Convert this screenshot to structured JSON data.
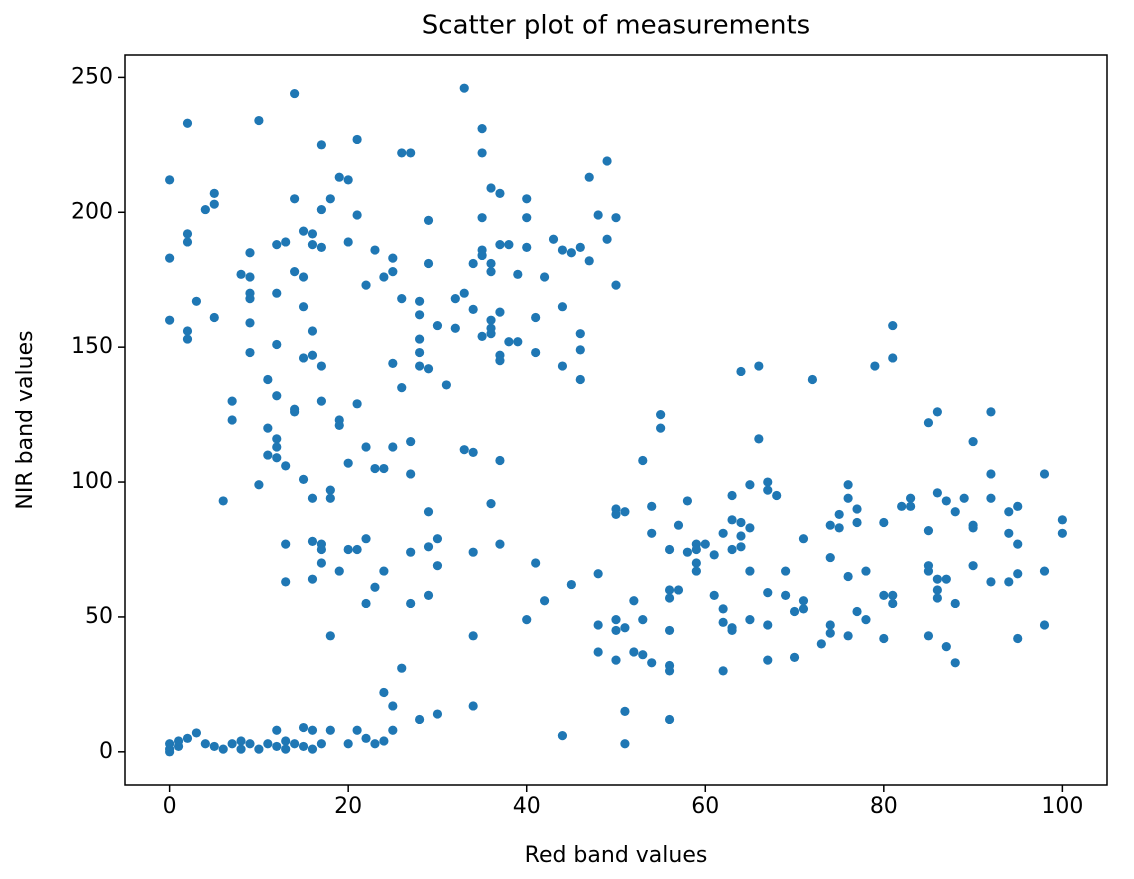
{
  "chart_data": {
    "type": "scatter",
    "title": "Scatter plot of measurements",
    "x_label": "Red band values",
    "y_label": "NIR band values",
    "color": "#1f77b4",
    "xlim": [
      -5,
      105
    ],
    "ylim": [
      -12.3,
      258.3
    ],
    "xticks": [
      0,
      20,
      40,
      60,
      80,
      100
    ],
    "yticks": [
      0,
      50,
      100,
      150,
      200,
      250
    ],
    "grid": false,
    "x": [
      0,
      0,
      0,
      0,
      0,
      0,
      1,
      1,
      2,
      2,
      2,
      2,
      2,
      2,
      3,
      3,
      4,
      4,
      5,
      5,
      5,
      5,
      6,
      6,
      7,
      7,
      7,
      8,
      8,
      8,
      9,
      9,
      9,
      9,
      9,
      9,
      9,
      10,
      10,
      10,
      11,
      11,
      11,
      11,
      12,
      12,
      12,
      12,
      12,
      12,
      12,
      12,
      12,
      13,
      13,
      13,
      13,
      13,
      13,
      14,
      14,
      14,
      14,
      14,
      14,
      15,
      15,
      15,
      15,
      15,
      15,
      15,
      16,
      16,
      16,
      16,
      16,
      16,
      16,
      16,
      16,
      17,
      17,
      17,
      17,
      17,
      17,
      17,
      17,
      17,
      18,
      18,
      18,
      18,
      18,
      19,
      19,
      19,
      19,
      20,
      20,
      20,
      20,
      20,
      21,
      21,
      21,
      21,
      21,
      22,
      22,
      22,
      22,
      22,
      23,
      23,
      23,
      23,
      24,
      24,
      24,
      24,
      24,
      25,
      25,
      25,
      25,
      25,
      25,
      26,
      26,
      26,
      26,
      27,
      27,
      27,
      27,
      27,
      28,
      28,
      28,
      28,
      28,
      28,
      29,
      29,
      29,
      29,
      29,
      29,
      30,
      30,
      30,
      30,
      31,
      32,
      32,
      33,
      33,
      33,
      34,
      34,
      34,
      34,
      34,
      34,
      35,
      35,
      35,
      35,
      35,
      35,
      36,
      36,
      36,
      36,
      36,
      36,
      36,
      37,
      37,
      37,
      37,
      37,
      37,
      37,
      38,
      38,
      39,
      39,
      40,
      40,
      40,
      40,
      41,
      41,
      41,
      42,
      42,
      43,
      44,
      44,
      44,
      44,
      45,
      45,
      46,
      46,
      46,
      46,
      47,
      47,
      48,
      48,
      48,
      48,
      49,
      49,
      50,
      50,
      50,
      50,
      50,
      50,
      50,
      51,
      51,
      51,
      51,
      52,
      52,
      53,
      53,
      53,
      54,
      54,
      54,
      55,
      55,
      56,
      56,
      56,
      56,
      56,
      56,
      56,
      57,
      57,
      58,
      58,
      59,
      59,
      59,
      59,
      60,
      61,
      61,
      62,
      62,
      62,
      62,
      63,
      63,
      63,
      63,
      63,
      64,
      64,
      64,
      64,
      65,
      65,
      65,
      65,
      66,
      66,
      67,
      67,
      67,
      67,
      67,
      68,
      69,
      69,
      70,
      70,
      71,
      71,
      71,
      72,
      73,
      74,
      74,
      74,
      74,
      75,
      75,
      76,
      76,
      76,
      76,
      77,
      77,
      77,
      78,
      78,
      79,
      80,
      80,
      80,
      81,
      81,
      81,
      81,
      82,
      83,
      83,
      85,
      85,
      85,
      85,
      85,
      86,
      86,
      86,
      86,
      86,
      87,
      87,
      87,
      88,
      88,
      88,
      89,
      90,
      90,
      90,
      90,
      92,
      92,
      92,
      92,
      94,
      94,
      94,
      95,
      95,
      95,
      95,
      98,
      98,
      98,
      100,
      100
    ],
    "values": [
      212,
      183,
      160,
      3,
      1,
      0,
      2,
      4,
      233,
      192,
      189,
      156,
      153,
      5,
      167,
      7,
      201,
      3,
      207,
      203,
      161,
      2,
      93,
      1,
      130,
      123,
      3,
      177,
      1,
      4,
      185,
      176,
      170,
      168,
      159,
      148,
      3,
      234,
      99,
      1,
      138,
      120,
      110,
      3,
      188,
      170,
      151,
      132,
      116,
      113,
      109,
      8,
      2,
      189,
      106,
      77,
      63,
      4,
      1,
      244,
      205,
      178,
      127,
      126,
      3,
      193,
      176,
      165,
      146,
      101,
      9,
      2,
      192,
      188,
      156,
      147,
      94,
      78,
      64,
      8,
      1,
      225,
      201,
      187,
      143,
      130,
      77,
      75,
      70,
      3,
      205,
      97,
      94,
      43,
      8,
      213,
      123,
      121,
      67,
      212,
      189,
      107,
      75,
      3,
      227,
      199,
      129,
      75,
      8,
      173,
      113,
      79,
      55,
      5,
      186,
      105,
      61,
      3,
      176,
      105,
      67,
      22,
      4,
      183,
      178,
      144,
      113,
      17,
      8,
      168,
      135,
      31,
      222,
      222,
      115,
      103,
      74,
      55,
      167,
      162,
      153,
      148,
      143,
      12,
      197,
      181,
      142,
      89,
      76,
      58,
      158,
      79,
      69,
      14,
      136,
      157,
      168,
      246,
      170,
      112,
      181,
      164,
      111,
      74,
      43,
      17,
      231,
      222,
      198,
      186,
      184,
      154,
      209,
      181,
      178,
      160,
      157,
      92,
      155,
      207,
      188,
      163,
      147,
      145,
      108,
      77,
      188,
      152,
      177,
      152,
      205,
      198,
      187,
      49,
      161,
      148,
      70,
      176,
      56,
      190,
      186,
      165,
      143,
      6,
      185,
      62,
      187,
      155,
      149,
      138,
      213,
      182,
      199,
      66,
      47,
      37,
      219,
      190,
      198,
      173,
      90,
      88,
      49,
      45,
      34,
      89,
      46,
      15,
      3,
      56,
      37,
      108,
      49,
      36,
      91,
      81,
      33,
      125,
      120,
      75,
      60,
      57,
      45,
      32,
      30,
      12,
      84,
      60,
      93,
      74,
      77,
      75,
      70,
      67,
      77,
      73,
      58,
      81,
      53,
      48,
      30,
      95,
      86,
      75,
      46,
      45,
      141,
      85,
      80,
      76,
      99,
      83,
      67,
      49,
      143,
      116,
      100,
      97,
      59,
      47,
      34,
      95,
      67,
      58,
      52,
      35,
      79,
      56,
      53,
      138,
      40,
      84,
      72,
      47,
      44,
      88,
      83,
      99,
      94,
      65,
      43,
      90,
      85,
      52,
      67,
      49,
      143,
      85,
      58,
      42,
      158,
      146,
      58,
      55,
      91,
      94,
      91,
      122,
      82,
      69,
      67,
      43,
      126,
      96,
      64,
      60,
      57,
      93,
      64,
      39,
      89,
      55,
      33,
      94,
      115,
      84,
      83,
      69,
      126,
      103,
      94,
      63,
      89,
      81,
      63,
      91,
      77,
      66,
      42,
      103,
      67,
      47,
      86,
      81
    ]
  }
}
